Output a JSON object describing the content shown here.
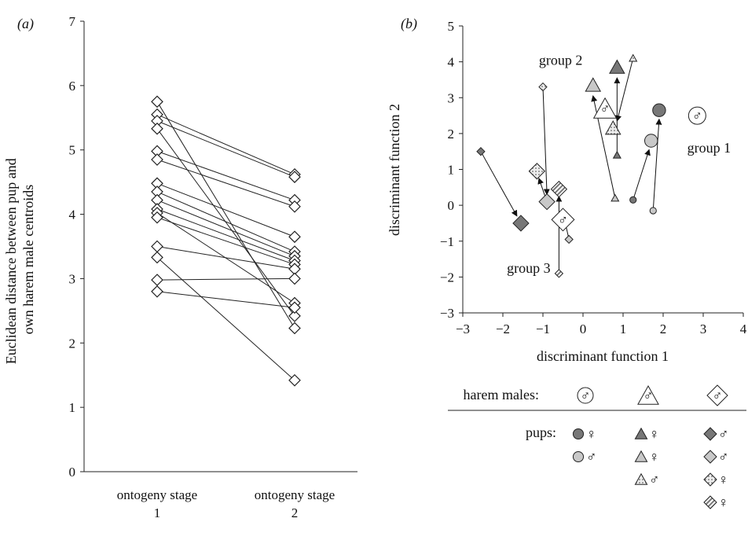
{
  "panel_a": {
    "label": "(a)"
  },
  "panel_b": {
    "label": "(b)"
  },
  "colors": {
    "dark": "#777777",
    "light": "#c8c8c8",
    "line": "#222222",
    "bg": "#ffffff"
  },
  "chart_data": [
    {
      "type": "line",
      "xlabel": "",
      "ylabel": "Euclidean distance between pup and own harem male centroids",
      "categories": [
        "ontogeny stage 1",
        "ontogeny stage 2"
      ],
      "ylim": [
        0,
        7
      ],
      "yticks": [
        0,
        1,
        2,
        3,
        4,
        5,
        6,
        7
      ],
      "pairs": [
        [
          5.75,
          2.23
        ],
        [
          5.55,
          4.62
        ],
        [
          5.45,
          4.58
        ],
        [
          5.33,
          2.42
        ],
        [
          4.98,
          4.22
        ],
        [
          4.85,
          4.12
        ],
        [
          4.48,
          3.65
        ],
        [
          4.35,
          3.42
        ],
        [
          4.22,
          3.35
        ],
        [
          4.08,
          3.28
        ],
        [
          4.02,
          2.62
        ],
        [
          3.95,
          3.22
        ],
        [
          3.5,
          3.15
        ],
        [
          3.33,
          1.42
        ],
        [
          2.98,
          3.0
        ],
        [
          2.8,
          2.55
        ]
      ]
    },
    {
      "type": "scatter",
      "xlabel": "discriminant function 1",
      "ylabel": "discriminant function 2",
      "xlim": [
        -3,
        4
      ],
      "ylim": [
        -3,
        5
      ],
      "xticks": [
        -3,
        -2,
        -1,
        0,
        1,
        2,
        3,
        4
      ],
      "yticks": [
        -3,
        -2,
        -1,
        0,
        1,
        2,
        3,
        4,
        5
      ],
      "annotations": [
        {
          "text": "group 1",
          "x": 2.6,
          "y": 1.6
        },
        {
          "text": "group 2",
          "x": -1.1,
          "y": 4.05
        },
        {
          "text": "group 3",
          "x": -1.9,
          "y": -1.75
        }
      ],
      "centroids": [
        {
          "x": 2.85,
          "y": 2.5,
          "shape": "circle"
        },
        {
          "x": 0.55,
          "y": 2.7,
          "shape": "triangle"
        },
        {
          "x": -0.5,
          "y": -0.4,
          "shape": "diamond"
        }
      ],
      "points": [
        {
          "x": 1.9,
          "y": 2.65,
          "shape": "circle",
          "fill": "dark",
          "size": "big"
        },
        {
          "x": 1.7,
          "y": 1.8,
          "shape": "circle",
          "fill": "light",
          "size": "big"
        },
        {
          "x": 1.25,
          "y": 0.15,
          "shape": "circle",
          "fill": "dark",
          "size": "small"
        },
        {
          "x": 1.75,
          "y": -0.15,
          "shape": "circle",
          "fill": "light",
          "size": "small"
        },
        {
          "x": 0.85,
          "y": 3.85,
          "shape": "triangle",
          "fill": "dark",
          "size": "big"
        },
        {
          "x": 0.25,
          "y": 3.35,
          "shape": "triangle",
          "fill": "light",
          "size": "big"
        },
        {
          "x": 0.75,
          "y": 2.15,
          "shape": "triangle",
          "fill": "dotted",
          "size": "big"
        },
        {
          "x": 0.85,
          "y": 1.4,
          "shape": "triangle",
          "fill": "dark",
          "size": "small"
        },
        {
          "x": 0.8,
          "y": 0.2,
          "shape": "triangle",
          "fill": "light",
          "size": "small"
        },
        {
          "x": 1.25,
          "y": 4.1,
          "shape": "triangle",
          "fill": "dotted",
          "size": "small"
        },
        {
          "x": -1.55,
          "y": -0.5,
          "shape": "diamond",
          "fill": "dark",
          "size": "big"
        },
        {
          "x": -0.9,
          "y": 0.1,
          "shape": "diamond",
          "fill": "light",
          "size": "big"
        },
        {
          "x": -1.15,
          "y": 0.95,
          "shape": "diamond",
          "fill": "dotted",
          "size": "big"
        },
        {
          "x": -0.6,
          "y": 0.45,
          "shape": "diamond",
          "fill": "striped",
          "size": "big"
        },
        {
          "x": -2.55,
          "y": 1.5,
          "shape": "diamond",
          "fill": "dark",
          "size": "small"
        },
        {
          "x": -1.0,
          "y": 3.3,
          "shape": "diamond",
          "fill": "dotted",
          "size": "small"
        },
        {
          "x": -0.35,
          "y": -0.95,
          "shape": "diamond",
          "fill": "light",
          "size": "small"
        },
        {
          "x": -0.6,
          "y": -1.9,
          "shape": "diamond",
          "fill": "striped",
          "size": "small"
        }
      ],
      "arrows": [
        [
          1.25,
          0.15,
          1.65,
          1.55
        ],
        [
          1.75,
          -0.15,
          1.9,
          2.4
        ],
        [
          0.8,
          0.2,
          0.25,
          3.05
        ],
        [
          0.85,
          1.4,
          0.85,
          3.55
        ],
        [
          1.25,
          4.1,
          0.85,
          2.35
        ],
        [
          -2.55,
          1.5,
          -1.65,
          -0.3
        ],
        [
          -1.0,
          3.3,
          -0.9,
          0.3
        ],
        [
          -0.35,
          -0.95,
          -0.5,
          -0.2
        ],
        [
          -0.6,
          -1.9,
          -0.6,
          0.25
        ],
        [
          -0.9,
          0.1,
          -1.1,
          0.75
        ]
      ],
      "legend": {
        "males_label": "harem males:",
        "pups_label": "pups:",
        "female_symbol": "♀",
        "male_symbol": "♂",
        "columns": [
          {
            "shape": "circle",
            "pups": [
              {
                "fill": "dark",
                "sex": "female"
              },
              {
                "fill": "light",
                "sex": "male"
              }
            ]
          },
          {
            "shape": "triangle",
            "pups": [
              {
                "fill": "dark",
                "sex": "female"
              },
              {
                "fill": "light",
                "sex": "female"
              },
              {
                "fill": "dotted",
                "sex": "male"
              }
            ]
          },
          {
            "shape": "diamond",
            "pups": [
              {
                "fill": "dark",
                "sex": "male"
              },
              {
                "fill": "light",
                "sex": "male"
              },
              {
                "fill": "dotted",
                "sex": "female"
              },
              {
                "fill": "striped",
                "sex": "female"
              }
            ]
          }
        ]
      }
    }
  ]
}
